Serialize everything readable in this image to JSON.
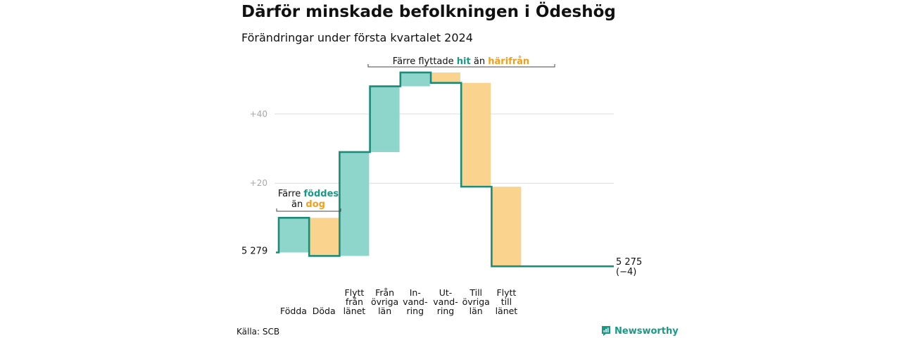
{
  "title": "Därför minskade befolkningen i Ödeshög",
  "subtitle": "Förändringar under första kvartalet 2024",
  "source": "Källa: SCB",
  "brand": "Newsworthy",
  "colors": {
    "positive": "#8ed6cc",
    "negative": "#fad48e",
    "line": "#1a8c78",
    "grid": "#dcdcdc",
    "accent_teal": "#1a9a86",
    "accent_orange": "#f0a020"
  },
  "annotations": {
    "births": {
      "line1": "Färre",
      "line1_hl": "föddes",
      "line2": "än",
      "line2_hl": "dog"
    },
    "migration": {
      "pre": "Färre flyttade",
      "hl1": "hit",
      "mid": "än",
      "hl2": "härifrån"
    }
  },
  "chart_data": {
    "type": "waterfall",
    "title": "Därför minskade befolkningen i Ödeshög",
    "subtitle": "Förändringar under första kvartalet 2024",
    "start_value": 5279,
    "start_label": "5 279",
    "end_value": 5275,
    "end_label": "5 275",
    "end_change_label": "(−4)",
    "y_ticks": [
      {
        "value": 20,
        "label": "+20"
      },
      {
        "value": 40,
        "label": "+40"
      }
    ],
    "ylim": [
      -6,
      53
    ],
    "grid": true,
    "steps": [
      {
        "label": [
          "Födda"
        ],
        "change": 10
      },
      {
        "label": [
          "Döda"
        ],
        "change": -11
      },
      {
        "label": [
          "Flytt",
          "från",
          "länet"
        ],
        "change": 30
      },
      {
        "label": [
          "Från",
          "övriga",
          "län"
        ],
        "change": 19
      },
      {
        "label": [
          "In-",
          "vand-",
          "ring"
        ],
        "change": 4
      },
      {
        "label": [
          "Ut-",
          "vand-",
          "ring"
        ],
        "change": -3
      },
      {
        "label": [
          "Till",
          "övriga",
          "län"
        ],
        "change": -30
      },
      {
        "label": [
          "Flytt",
          "till",
          "länet"
        ],
        "change": -23
      }
    ]
  }
}
